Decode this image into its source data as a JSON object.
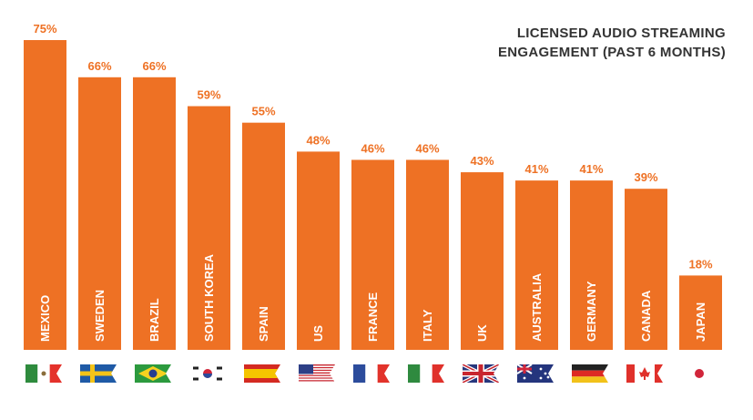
{
  "colors": {
    "bar": "#ee7124",
    "label_text": "#ee7124",
    "inner_text": "#ffffff",
    "title_text": "#333333"
  },
  "chart_data": {
    "type": "bar",
    "title_lines": [
      "LICENSED AUDIO STREAMING",
      "ENGAGEMENT (PAST 6 MONTHS)"
    ],
    "categories": [
      "MEXICO",
      "SWEDEN",
      "BRAZIL",
      "SOUTH KOREA",
      "SPAIN",
      "US",
      "FRANCE",
      "ITALY",
      "UK",
      "AUSTRALIA",
      "GERMANY",
      "CANADA",
      "JAPAN"
    ],
    "values": [
      75,
      66,
      66,
      59,
      55,
      48,
      46,
      46,
      43,
      41,
      41,
      39,
      18
    ],
    "value_labels": [
      "75%",
      "66%",
      "66%",
      "59%",
      "55%",
      "48%",
      "46%",
      "46%",
      "43%",
      "41%",
      "41%",
      "39%",
      "18%"
    ],
    "flags": [
      "mexico-flag",
      "sweden-flag",
      "brazil-flag",
      "south-korea-flag",
      "spain-flag",
      "us-flag",
      "france-flag",
      "italy-flag",
      "uk-flag",
      "australia-flag",
      "germany-flag",
      "canada-flag",
      "japan-flag"
    ],
    "ylim": [
      0,
      75
    ],
    "grid": false,
    "legend": "none"
  }
}
